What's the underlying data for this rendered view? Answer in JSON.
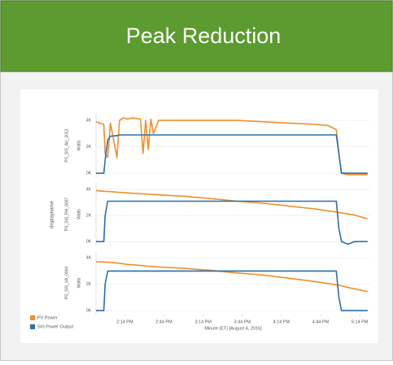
{
  "title": "Peak Reduction",
  "facet_label": "displayname",
  "chart_data": [
    {
      "type": "line",
      "facet": "PS_SIS_AU_0013",
      "ylabel": "Watts",
      "xlim": [
        832,
        1042
      ],
      "ylim": [
        -300,
        4500
      ],
      "yticks": [
        {
          "value": 0,
          "label": "0K"
        },
        {
          "value": 2000,
          "label": "2K"
        },
        {
          "value": 4000,
          "label": "4K"
        }
      ],
      "grid": true,
      "x": [
        832,
        838,
        839,
        841,
        843,
        848,
        850,
        853,
        856,
        860,
        866,
        868,
        870,
        872,
        874,
        876,
        880,
        890,
        900,
        920,
        940,
        960,
        980,
        1000,
        1010,
        1016,
        1018,
        1020,
        1025,
        1030,
        1040
      ],
      "series": [
        {
          "name": "PV Power",
          "color": "#f28e2b",
          "values": [
            3900,
            3700,
            1500,
            1200,
            3800,
            1200,
            4000,
            4200,
            4100,
            4200,
            4100,
            1500,
            4000,
            1800,
            4100,
            3000,
            4000,
            4000,
            4000,
            4000,
            4000,
            3900,
            3800,
            3700,
            3600,
            3300,
            1500,
            0,
            -100,
            -100,
            -100
          ]
        },
        {
          "name": "SIS Power Output",
          "color": "#2a6fae",
          "values": [
            0,
            0,
            1000,
            2500,
            2800,
            2850,
            2900,
            2900,
            2900,
            2900,
            2900,
            2900,
            2900,
            2900,
            2900,
            2900,
            2900,
            2900,
            2900,
            2900,
            2900,
            2900,
            2900,
            2900,
            2900,
            2900,
            1500,
            0,
            0,
            0,
            0
          ]
        }
      ]
    },
    {
      "type": "line",
      "facet": "PS_SIS_RH_0007",
      "ylabel": "Watts",
      "xlim": [
        832,
        1042
      ],
      "ylim": [
        -300,
        4500
      ],
      "yticks": [
        {
          "value": 0,
          "label": "0K"
        },
        {
          "value": 2000,
          "label": "2K"
        },
        {
          "value": 4000,
          "label": "4K"
        }
      ],
      "grid": true,
      "x": [
        832,
        838,
        839,
        841,
        843,
        848,
        850,
        853,
        856,
        860,
        866,
        868,
        870,
        872,
        874,
        876,
        880,
        890,
        900,
        920,
        940,
        960,
        980,
        1000,
        1010,
        1016,
        1018,
        1020,
        1025,
        1030,
        1040
      ],
      "series": [
        {
          "name": "PV Power",
          "color": "#f28e2b",
          "values": [
            3900,
            3860,
            3850,
            3840,
            3830,
            3790,
            3780,
            3760,
            3740,
            3710,
            3670,
            3660,
            3650,
            3640,
            3620,
            3610,
            3590,
            3530,
            3480,
            3300,
            3100,
            2940,
            2720,
            2500,
            2350,
            2260,
            2230,
            2200,
            2120,
            2030,
            1750
          ]
        },
        {
          "name": "SIS Power Output",
          "color": "#2a6fae",
          "values": [
            0,
            0,
            2000,
            3100,
            3100,
            3100,
            3100,
            3100,
            3100,
            3100,
            3100,
            3100,
            3100,
            3100,
            3100,
            3100,
            3100,
            3100,
            3100,
            3100,
            3100,
            3100,
            3100,
            3100,
            3100,
            3100,
            1000,
            0,
            -200,
            0,
            0
          ]
        }
      ]
    },
    {
      "type": "line",
      "facet": "PS_SIS_VA_0004",
      "ylabel": "Watts",
      "xlabel": "Minute (ET) [August 4, 2016]",
      "xlim": [
        832,
        1042
      ],
      "ylim": [
        -300,
        4500
      ],
      "xticks": [
        {
          "value": 854,
          "label": "2:14 PM"
        },
        {
          "value": 884,
          "label": "2:44 PM"
        },
        {
          "value": 914,
          "label": "3:14 PM"
        },
        {
          "value": 944,
          "label": "3:44 PM"
        },
        {
          "value": 974,
          "label": "4:14 PM"
        },
        {
          "value": 1004,
          "label": "4:44 PM"
        },
        {
          "value": 1034,
          "label": "5:14 PM"
        }
      ],
      "yticks": [
        {
          "value": 0,
          "label": "0K"
        },
        {
          "value": 2000,
          "label": "2K"
        },
        {
          "value": 4000,
          "label": "4K"
        }
      ],
      "grid": true,
      "x": [
        832,
        838,
        839,
        841,
        843,
        848,
        850,
        853,
        856,
        860,
        866,
        868,
        870,
        872,
        874,
        876,
        880,
        890,
        900,
        920,
        940,
        960,
        980,
        1000,
        1010,
        1016,
        1018,
        1020,
        1025,
        1030,
        1040
      ],
      "series": [
        {
          "name": "PV Power",
          "color": "#f28e2b",
          "values": [
            3700,
            3680,
            3670,
            3660,
            3650,
            3600,
            3580,
            3540,
            3500,
            3470,
            3420,
            3400,
            3380,
            3360,
            3350,
            3340,
            3300,
            3250,
            3200,
            3050,
            2850,
            2700,
            2450,
            2200,
            2050,
            1950,
            1920,
            1880,
            1750,
            1650,
            1450
          ]
        },
        {
          "name": "SIS Power Output",
          "color": "#2a6fae",
          "values": [
            0,
            0,
            2000,
            3000,
            3000,
            3000,
            3000,
            3000,
            3000,
            3000,
            3000,
            3000,
            3000,
            3000,
            3000,
            3000,
            3000,
            3000,
            3000,
            3000,
            3000,
            3000,
            3000,
            3000,
            3000,
            3000,
            1000,
            0,
            0,
            0,
            0
          ]
        }
      ]
    }
  ]
}
